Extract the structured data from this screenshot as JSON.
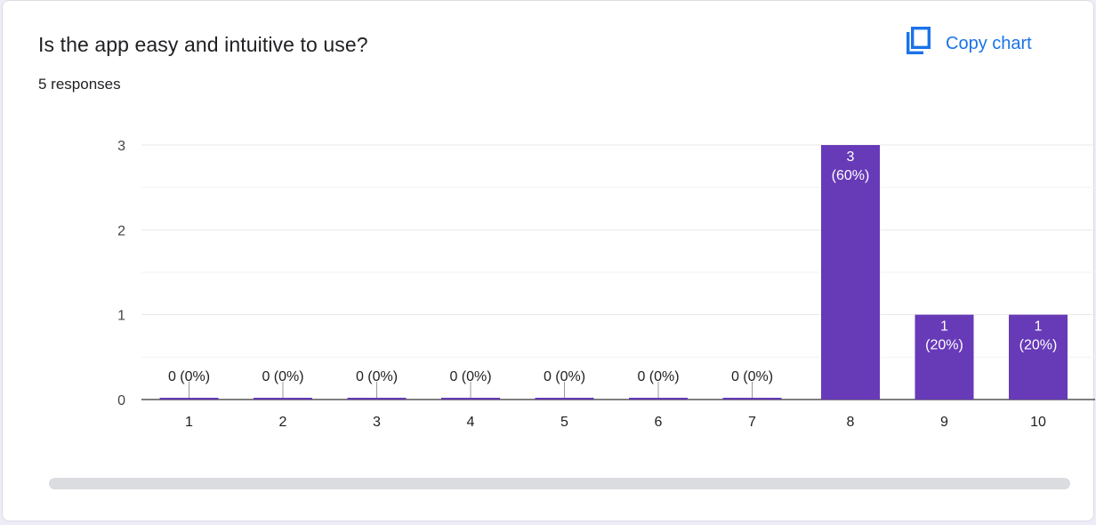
{
  "question": "Is the app easy and intuitive to use?",
  "responses_label": "5 responses",
  "copy_chart_label": "Copy chart",
  "icons": {
    "copy": "copy-icon"
  },
  "colors": {
    "bar": "#673ab7",
    "accent": "#1a73e8",
    "grid": "#e8e8e8",
    "text": "#202124"
  },
  "chart_data": {
    "type": "bar",
    "categories": [
      "1",
      "2",
      "3",
      "4",
      "5",
      "6",
      "7",
      "8",
      "9",
      "10"
    ],
    "values": [
      0,
      0,
      0,
      0,
      0,
      0,
      0,
      3,
      1,
      1
    ],
    "data_labels": [
      "0 (0%)",
      "0 (0%)",
      "0 (0%)",
      "0 (0%)",
      "0 (0%)",
      "0 (0%)",
      "0 (0%)",
      "3\n(60%)",
      "1\n(20%)",
      "1\n(20%)"
    ],
    "y_ticks": [
      0,
      1,
      2,
      3
    ],
    "ylim": [
      0,
      3
    ],
    "grid": true,
    "legend": "none"
  }
}
